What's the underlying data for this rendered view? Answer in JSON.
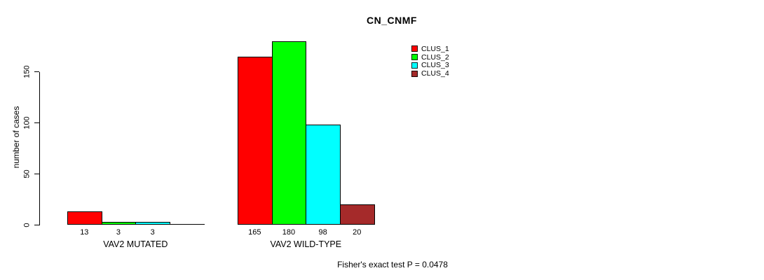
{
  "chart_data": {
    "type": "bar",
    "title": "CN_CNMF",
    "ylabel": "number of cases",
    "ylim": [
      0,
      185
    ],
    "yticks": [
      0,
      50,
      100,
      150
    ],
    "grid": false,
    "legend_position": "top-right",
    "categories": [
      "VAV2 MUTATED",
      "VAV2 WILD-TYPE"
    ],
    "series": [
      {
        "name": "CLUS_1",
        "color": "#ff0000",
        "values": [
          13,
          165
        ]
      },
      {
        "name": "CLUS_2",
        "color": "#00ff00",
        "values": [
          3,
          180
        ]
      },
      {
        "name": "CLUS_3",
        "color": "#00ffff",
        "values": [
          3,
          98
        ]
      },
      {
        "name": "CLUS_4",
        "color": "#a52a2a",
        "values": [
          0,
          20
        ]
      }
    ],
    "bar_count_labels": [
      [
        "13",
        "3",
        "3",
        ""
      ],
      [
        "165",
        "180",
        "98",
        "20"
      ]
    ],
    "annotation": "Fisher's exact test P = 0.0478"
  }
}
